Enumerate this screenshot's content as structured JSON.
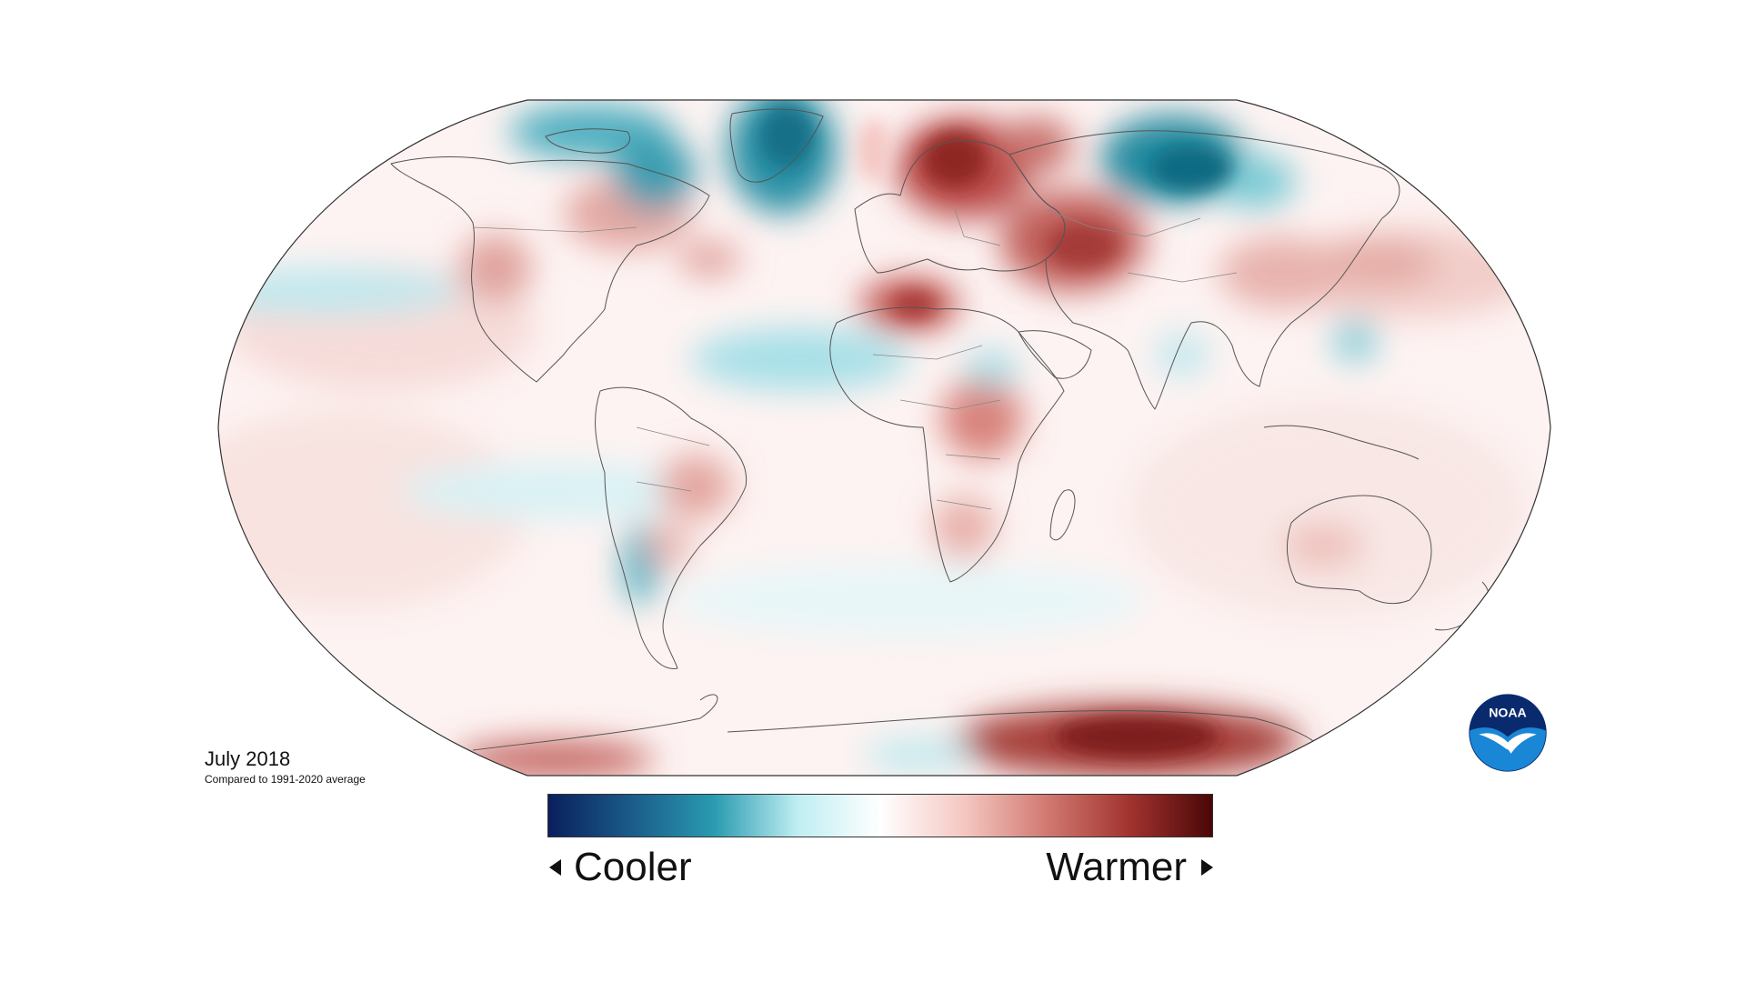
{
  "map": {
    "title": "July 2018",
    "subtitle": "Compared to 1991-2020 average",
    "projection": "Robinson",
    "colors": {
      "ocean_background": "#ffffff",
      "coastline": "#555555",
      "warm_light": "#f4cfcb",
      "warm_mid": "#d8817b",
      "warm_strong": "#b0413e",
      "warm_dark": "#7d1b1c",
      "cool_light": "#cdeef2",
      "cool_mid": "#6cc3cf",
      "cool_strong": "#1f8d9e",
      "cool_dark": "#0b5f74"
    },
    "anomaly_regions": [
      {
        "region": "Scandinavia / Northern Europe",
        "anomaly": "warmer"
      },
      {
        "region": "Western Russia",
        "anomaly": "warmer"
      },
      {
        "region": "Central Siberia",
        "anomaly": "cooler"
      },
      {
        "region": "Greenland / Canadian Arctic",
        "anomaly": "cooler"
      },
      {
        "region": "North Africa",
        "anomaly": "warmer"
      },
      {
        "region": "Antarctica (East)",
        "anomaly": "warmer"
      },
      {
        "region": "Southern South America",
        "anomaly": "cooler"
      },
      {
        "region": "Equatorial Atlantic",
        "anomaly": "cooler"
      }
    ]
  },
  "legend": {
    "cooler_label": "Cooler",
    "warmer_label": "Warmer",
    "gradient_stops": [
      "#0a1f5c",
      "#1a5b8a",
      "#2a9bb0",
      "#bfeef2",
      "#ffffff",
      "#f5c8c2",
      "#d17a72",
      "#a2332f",
      "#4a0707"
    ]
  },
  "logo": {
    "text": "NOAA",
    "icon": "noaa-logo-icon",
    "colors": {
      "top": "#0a2a6e",
      "bottom": "#1a86d6",
      "bird": "#ffffff"
    }
  }
}
